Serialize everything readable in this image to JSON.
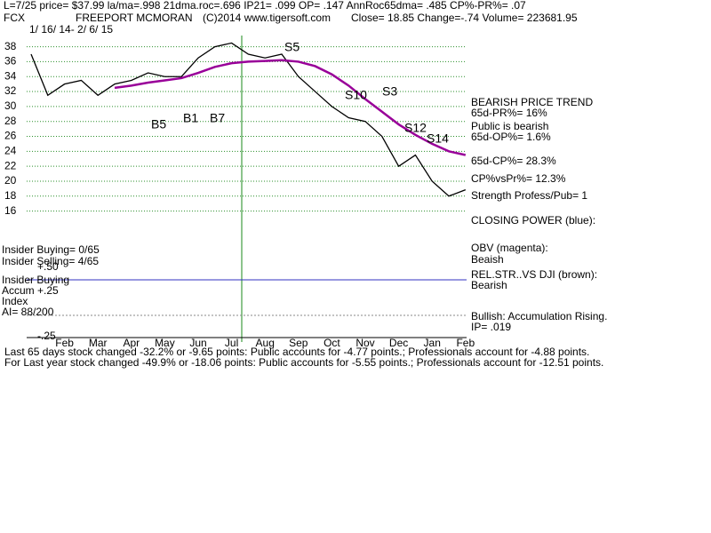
{
  "header": {
    "line1": "L=7/25  price= $37.99  la/ma=.998 21dma.roc=.696 IP21= .099 OP= .147 AnnRoc65dma= .485 CP%-PR%=  .07",
    "symbol": "FCX",
    "company": "FREEPORT MCMORAN",
    "copyright": "(C)2014 www.tigersoft.com",
    "quote": "Close=  18.85  Change=-.74 Volume= 223681.95",
    "range": "1/ 16/ 14- 2/ 6/ 15"
  },
  "chart_data": {
    "type": "line",
    "categories": [
      null,
      null,
      "Feb",
      null,
      "Mar",
      null,
      "Apr",
      null,
      "May",
      null,
      "Jun",
      null,
      "Jul",
      null,
      "Aug",
      null,
      "Sep",
      null,
      "Oct",
      null,
      "Nov",
      null,
      "Dec",
      null,
      "Jan",
      null,
      "Feb"
    ],
    "series": [
      {
        "color": "#000000",
        "values": [
          37,
          31.5,
          33,
          33.5,
          31.5,
          33,
          33.5,
          34.5,
          34,
          34,
          36.5,
          38,
          38.5,
          37,
          36.5,
          37,
          34,
          32,
          30,
          28.5,
          28,
          26,
          22,
          23.5,
          20,
          18,
          18.85
        ]
      },
      {
        "color": "#990099",
        "values": [
          null,
          null,
          null,
          null,
          null,
          32.5,
          32.8,
          33.2,
          33.5,
          33.8,
          34.5,
          35.3,
          35.8,
          36,
          36.1,
          36.2,
          36,
          35.4,
          34.3,
          32.8,
          31,
          29.3,
          27.6,
          26.2,
          25,
          24,
          23.5
        ]
      }
    ],
    "ylim": [
      15,
      39.5
    ],
    "yticks": [
      16,
      18,
      20,
      22,
      24,
      26,
      28,
      30,
      32,
      34,
      36,
      38
    ],
    "grid": true,
    "signals": [
      "S5",
      "S10",
      "S3",
      "S12",
      "S14",
      "B5",
      "B1",
      "B7"
    ]
  },
  "panel": {
    "right": [
      "BEARISH PRICE TREND",
      "65d-PR%= 16%",
      "Public is bearish",
      "65d-OP%= 1.6%",
      "65d-CP%= 28.3%",
      "CP%vsPr%=  12.3%",
      "Strength Profess/Pub= 1",
      "CLOSING POWER (blue):",
      "OBV (magenta):",
      "Beaish",
      "REL.STR..VS DJI (brown):",
      "Bearish",
      "Bullish: Accumulation Rising.",
      "IP=  .019"
    ],
    "left": [
      "Insider Buying= 0/65",
      "Insider Selling= 4/65",
      "+.50",
      "Insider Buying",
      "Accum  +.25",
      "Index",
      "AI= 88/200",
      "-.25"
    ]
  },
  "footer": [
    "Last 65 days stock changed -32.2% or -9.65 points:  Public accounts for -4.77 points.;  Professionals account for -4.88 points.",
    "For Last year stock changed -49.9% or -18.06 points:  Public accounts for -5.55 points.;  Professionals account for -12.51 points."
  ]
}
